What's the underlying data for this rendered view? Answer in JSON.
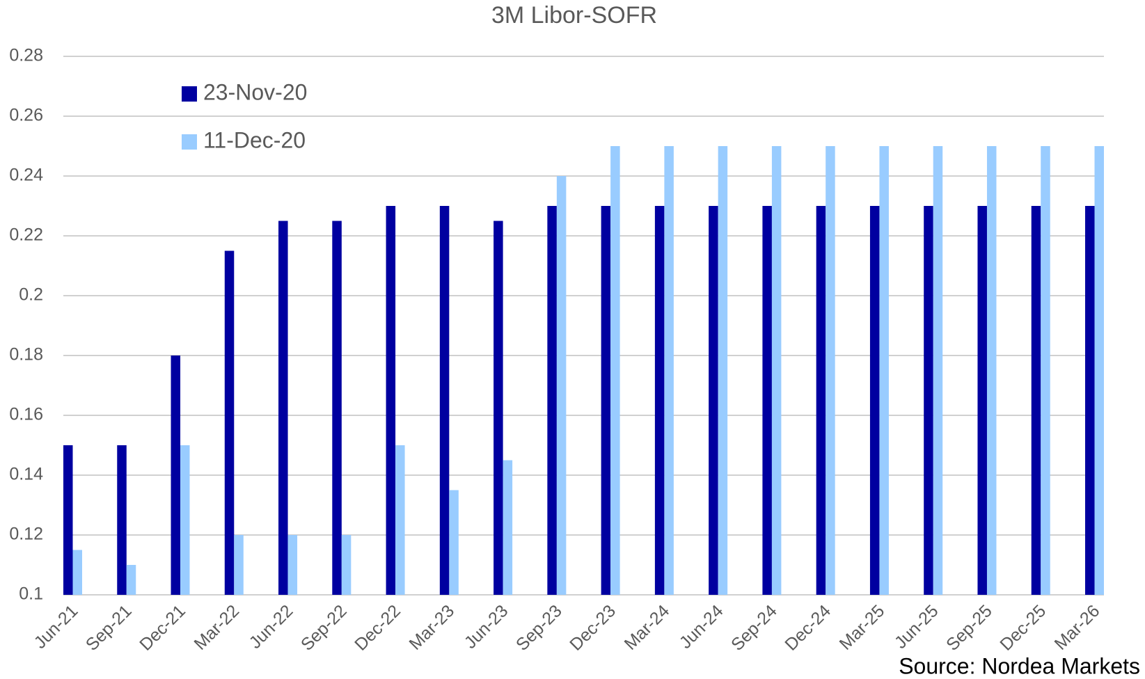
{
  "chart_data": {
    "type": "bar",
    "title": "3M Libor-SOFR",
    "categories": [
      "Jun-21",
      "Sep-21",
      "Dec-21",
      "Mar-22",
      "Jun-22",
      "Sep-22",
      "Dec-22",
      "Mar-23",
      "Jun-23",
      "Sep-23",
      "Dec-23",
      "Mar-24",
      "Jun-24",
      "Sep-24",
      "Dec-24",
      "Mar-25",
      "Jun-25",
      "Sep-25",
      "Dec-25",
      "Mar-26"
    ],
    "series": [
      {
        "name": "23-Nov-20",
        "color": "#0000a0",
        "values": [
          0.15,
          0.15,
          0.18,
          0.215,
          0.225,
          0.225,
          0.23,
          0.23,
          0.225,
          0.23,
          0.23,
          0.23,
          0.23,
          0.23,
          0.23,
          0.23,
          0.23,
          0.23,
          0.23,
          0.23
        ]
      },
      {
        "name": "11-Dec-20",
        "color": "#99ccff",
        "values": [
          0.115,
          0.11,
          0.15,
          0.12,
          0.12,
          0.12,
          0.15,
          0.135,
          0.145,
          0.24,
          0.25,
          0.25,
          0.25,
          0.25,
          0.25,
          0.25,
          0.25,
          0.25,
          0.25,
          0.25
        ]
      }
    ],
    "ylim": [
      0.1,
      0.28
    ],
    "yticks": [
      0.1,
      0.12,
      0.14,
      0.16,
      0.18,
      0.2,
      0.22,
      0.24,
      0.26,
      0.28
    ],
    "grid": true,
    "legend": "upper left",
    "source": "Source: Nordea Markets"
  }
}
